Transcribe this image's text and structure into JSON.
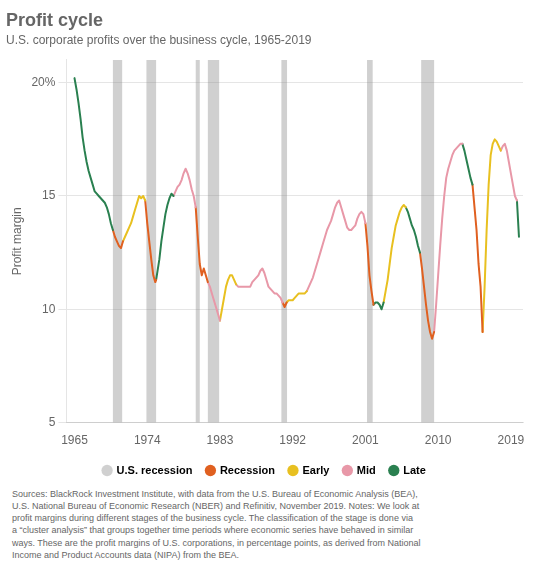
{
  "chart_data": {
    "type": "line",
    "title": "Profit cycle",
    "subtitle": "U.S. corporate profits over the business cycle, 1965-2019",
    "ylabel": "Profit margin",
    "xlim": [
      1964.0,
      2020.5
    ],
    "xticks": [
      1965,
      1974,
      1983,
      1992,
      2001,
      2010,
      2019
    ],
    "ylim": [
      5,
      21
    ],
    "yticks": [
      5,
      10,
      15,
      {
        "value": 20,
        "label": "20%"
      }
    ],
    "grid": "y",
    "recession_bands": {
      "name": "U.S. recession",
      "color": "#777777",
      "ranges": [
        [
          1969.75,
          1970.9
        ],
        [
          1973.9,
          1975.1
        ],
        [
          1980.0,
          1980.5
        ],
        [
          1981.5,
          1982.9
        ],
        [
          1990.6,
          1991.3
        ],
        [
          2001.2,
          2001.9
        ],
        [
          2007.9,
          2009.5
        ]
      ]
    },
    "phases": [
      {
        "name": "Recession",
        "color": "#E06020"
      },
      {
        "name": "Early",
        "color": "#E8C020"
      },
      {
        "name": "Mid",
        "color": "#E898A8"
      },
      {
        "name": "Late",
        "color": "#2A8050"
      }
    ],
    "segments": [
      {
        "phase": "Late",
        "x": [
          1965.0,
          1965.25,
          1965.5,
          1965.75,
          1966.0,
          1966.25,
          1966.5,
          1966.75,
          1967.0,
          1967.25,
          1967.5,
          1967.75,
          1968.0,
          1968.25,
          1968.5,
          1968.75,
          1969.0,
          1969.25,
          1969.5,
          1969.75
        ],
        "values": [
          20.2,
          19.7,
          19.1,
          18.4,
          17.6,
          17.0,
          16.5,
          16.1,
          15.8,
          15.5,
          15.2,
          15.1,
          15.0,
          14.9,
          14.8,
          14.7,
          14.5,
          14.2,
          13.8,
          13.5
        ]
      },
      {
        "phase": "Recession",
        "x": [
          1969.75,
          1970.0,
          1970.25,
          1970.5,
          1970.75,
          1971.0
        ],
        "values": [
          13.5,
          13.2,
          13.0,
          12.8,
          12.7,
          13.0
        ]
      },
      {
        "phase": "Early",
        "x": [
          1971.0,
          1971.25,
          1971.5,
          1971.75,
          1972.0,
          1972.25,
          1972.5,
          1972.75,
          1973.0,
          1973.25,
          1973.5,
          1973.75
        ],
        "values": [
          13.0,
          13.2,
          13.4,
          13.6,
          13.8,
          14.1,
          14.4,
          14.7,
          15.0,
          14.9,
          15.0,
          14.8
        ]
      },
      {
        "phase": "Recession",
        "x": [
          1973.75,
          1974.0,
          1974.25,
          1974.5,
          1974.75,
          1975.0,
          1975.1
        ],
        "values": [
          14.8,
          13.8,
          13.0,
          12.2,
          11.5,
          11.2,
          11.3
        ]
      },
      {
        "phase": "Late",
        "x": [
          1975.1,
          1975.5,
          1975.75,
          1976.0,
          1976.25,
          1976.5,
          1976.75,
          1977.0,
          1977.25
        ],
        "values": [
          11.3,
          12.2,
          13.0,
          13.6,
          14.2,
          14.6,
          14.9,
          15.1,
          15.0
        ]
      },
      {
        "phase": "Mid",
        "x": [
          1977.25,
          1977.5,
          1977.75,
          1978.0,
          1978.25,
          1978.5,
          1978.75,
          1979.0,
          1979.25,
          1979.5,
          1979.75,
          1980.0
        ],
        "values": [
          15.0,
          15.2,
          15.4,
          15.5,
          15.7,
          16.0,
          16.2,
          16.0,
          15.7,
          15.3,
          15.0,
          14.5
        ]
      },
      {
        "phase": "Recession",
        "x": [
          1980.0,
          1980.25,
          1980.5,
          1980.75,
          1981.0,
          1981.25,
          1981.5
        ],
        "values": [
          14.5,
          13.2,
          12.0,
          11.5,
          11.8,
          11.5,
          11.2
        ]
      },
      {
        "phase": "Mid",
        "x": [
          1981.5,
          1981.75,
          1982.0,
          1982.25,
          1982.5,
          1982.75,
          1983.0
        ],
        "values": [
          11.2,
          11.0,
          10.7,
          10.4,
          10.1,
          9.8,
          9.5
        ]
      },
      {
        "phase": "Early",
        "x": [
          1983.0,
          1983.25,
          1983.5,
          1983.75,
          1984.0,
          1984.25,
          1984.5,
          1984.75,
          1985.0
        ],
        "values": [
          9.5,
          10.0,
          10.5,
          11.0,
          11.3,
          11.5,
          11.5,
          11.3,
          11.1
        ]
      },
      {
        "phase": "Mid",
        "x": [
          1985.0,
          1985.25,
          1985.5,
          1985.75,
          1986.0,
          1986.25,
          1986.5,
          1986.75,
          1987.0,
          1987.25,
          1987.5,
          1987.75,
          1988.0,
          1988.25,
          1988.5,
          1988.75,
          1989.0,
          1989.25,
          1989.5,
          1989.75,
          1990.0,
          1990.25,
          1990.5,
          1990.75
        ],
        "values": [
          11.1,
          11.0,
          11.0,
          11.0,
          11.0,
          11.0,
          11.0,
          11.0,
          11.2,
          11.3,
          11.4,
          11.5,
          11.7,
          11.8,
          11.6,
          11.3,
          11.0,
          10.9,
          10.8,
          10.7,
          10.7,
          10.6,
          10.5,
          10.3
        ]
      },
      {
        "phase": "Recession",
        "x": [
          1990.75,
          1991.0,
          1991.25
        ],
        "values": [
          10.3,
          10.1,
          10.3
        ]
      },
      {
        "phase": "Early",
        "x": [
          1991.25,
          1991.5,
          1991.75,
          1992.0,
          1992.25,
          1992.5,
          1992.75,
          1993.0,
          1993.25,
          1993.5,
          1993.75
        ],
        "values": [
          10.3,
          10.4,
          10.4,
          10.4,
          10.5,
          10.6,
          10.7,
          10.7,
          10.7,
          10.7,
          10.8
        ]
      },
      {
        "phase": "Mid",
        "x": [
          1993.75,
          1994.0,
          1994.25,
          1994.5,
          1994.75,
          1995.0,
          1995.25,
          1995.5,
          1995.75,
          1996.0,
          1996.25,
          1996.5,
          1996.75,
          1997.0,
          1997.25,
          1997.5,
          1997.75,
          1998.0,
          1998.25,
          1998.5,
          1998.75,
          1999.0,
          1999.25,
          1999.5,
          1999.75,
          2000.0,
          2000.25,
          2000.5,
          2000.75,
          2001.0
        ],
        "values": [
          10.8,
          11.0,
          11.2,
          11.4,
          11.7,
          12.0,
          12.3,
          12.6,
          12.9,
          13.2,
          13.5,
          13.7,
          13.9,
          14.2,
          14.5,
          14.7,
          14.8,
          14.5,
          14.2,
          13.9,
          13.6,
          13.5,
          13.5,
          13.6,
          13.7,
          14.0,
          14.2,
          14.3,
          14.2,
          13.8
        ]
      },
      {
        "phase": "Recession",
        "x": [
          2001.0,
          2001.25,
          2001.5,
          2001.75,
          2002.0
        ],
        "values": [
          13.8,
          12.8,
          11.5,
          10.8,
          10.2
        ]
      },
      {
        "phase": "Late",
        "x": [
          2002.0,
          2002.25,
          2002.5,
          2002.75,
          2003.0,
          2003.25
        ],
        "values": [
          10.2,
          10.3,
          10.3,
          10.2,
          10.0,
          10.3
        ]
      },
      {
        "phase": "Early",
        "x": [
          2003.25,
          2003.5,
          2003.75,
          2004.0,
          2004.25,
          2004.5,
          2004.75,
          2005.0,
          2005.25,
          2005.5,
          2005.75,
          2006.0
        ],
        "values": [
          10.3,
          10.8,
          11.3,
          12.0,
          12.7,
          13.2,
          13.7,
          14.0,
          14.3,
          14.5,
          14.6,
          14.5
        ]
      },
      {
        "phase": "Late",
        "x": [
          2006.0,
          2006.25,
          2006.5,
          2006.75,
          2007.0,
          2007.25,
          2007.5,
          2007.75
        ],
        "values": [
          14.5,
          14.3,
          14.0,
          13.7,
          13.5,
          13.2,
          12.8,
          12.5
        ]
      },
      {
        "phase": "Recession",
        "x": [
          2007.75,
          2008.0,
          2008.25,
          2008.5,
          2008.75,
          2009.0,
          2009.25,
          2009.5
        ],
        "values": [
          12.5,
          11.8,
          11.0,
          10.2,
          9.5,
          9.0,
          8.7,
          9.0
        ]
      },
      {
        "phase": "Mid",
        "x": [
          2009.5,
          2009.75,
          2010.0,
          2010.25,
          2010.5,
          2010.75,
          2011.0,
          2011.25,
          2011.5,
          2011.75,
          2012.0,
          2012.25,
          2012.5,
          2012.75,
          2013.0
        ],
        "values": [
          9.0,
          10.2,
          11.5,
          12.8,
          14.0,
          15.0,
          15.8,
          16.2,
          16.5,
          16.8,
          17.0,
          17.1,
          17.2,
          17.3,
          17.3
        ]
      },
      {
        "phase": "Late",
        "x": [
          2013.0,
          2013.25,
          2013.5,
          2013.75,
          2014.0,
          2014.25
        ],
        "values": [
          17.3,
          17.0,
          16.6,
          16.2,
          15.8,
          15.5
        ]
      },
      {
        "phase": "Recession",
        "x": [
          2014.25,
          2014.5,
          2014.75,
          2015.0,
          2015.25,
          2015.5
        ],
        "values": [
          15.5,
          14.5,
          13.5,
          12.0,
          11.0,
          9.0
        ]
      },
      {
        "phase": "Early",
        "x": [
          2015.5,
          2015.75,
          2016.0,
          2016.25,
          2016.5,
          2016.75,
          2017.0,
          2017.25,
          2017.5,
          2017.75
        ],
        "values": [
          9.0,
          11.0,
          13.5,
          15.5,
          16.8,
          17.3,
          17.5,
          17.4,
          17.2,
          17.0
        ]
      },
      {
        "phase": "Mid",
        "x": [
          2017.75,
          2018.0,
          2018.25,
          2018.5,
          2018.75,
          2019.0,
          2019.25,
          2019.5,
          2019.75
        ],
        "values": [
          17.0,
          17.2,
          17.3,
          17.0,
          16.5,
          16.0,
          15.5,
          15.0,
          14.8
        ]
      },
      {
        "phase": "Late",
        "x": [
          2019.75,
          2020.0
        ],
        "values": [
          14.8,
          13.2
        ]
      }
    ],
    "footnote": "Sources: BlackRock Investment Institute, with data from the U.S. Bureau of Economic Analysis (BEA),\nU.S. National Bureau of Economic Research (NBER) and Refinitiv, November 2019. Notes: We look at\nprofit margins during different stages of the business cycle. The classification of the stage is done via\na “cluster analysis” that groups together time periods where economic series have behaved in similar\nways. These are the profit margins of U.S. corporations, in percentage points, as derived from National\nIncome and Product Accounts data (NIPA) from the BEA."
  }
}
